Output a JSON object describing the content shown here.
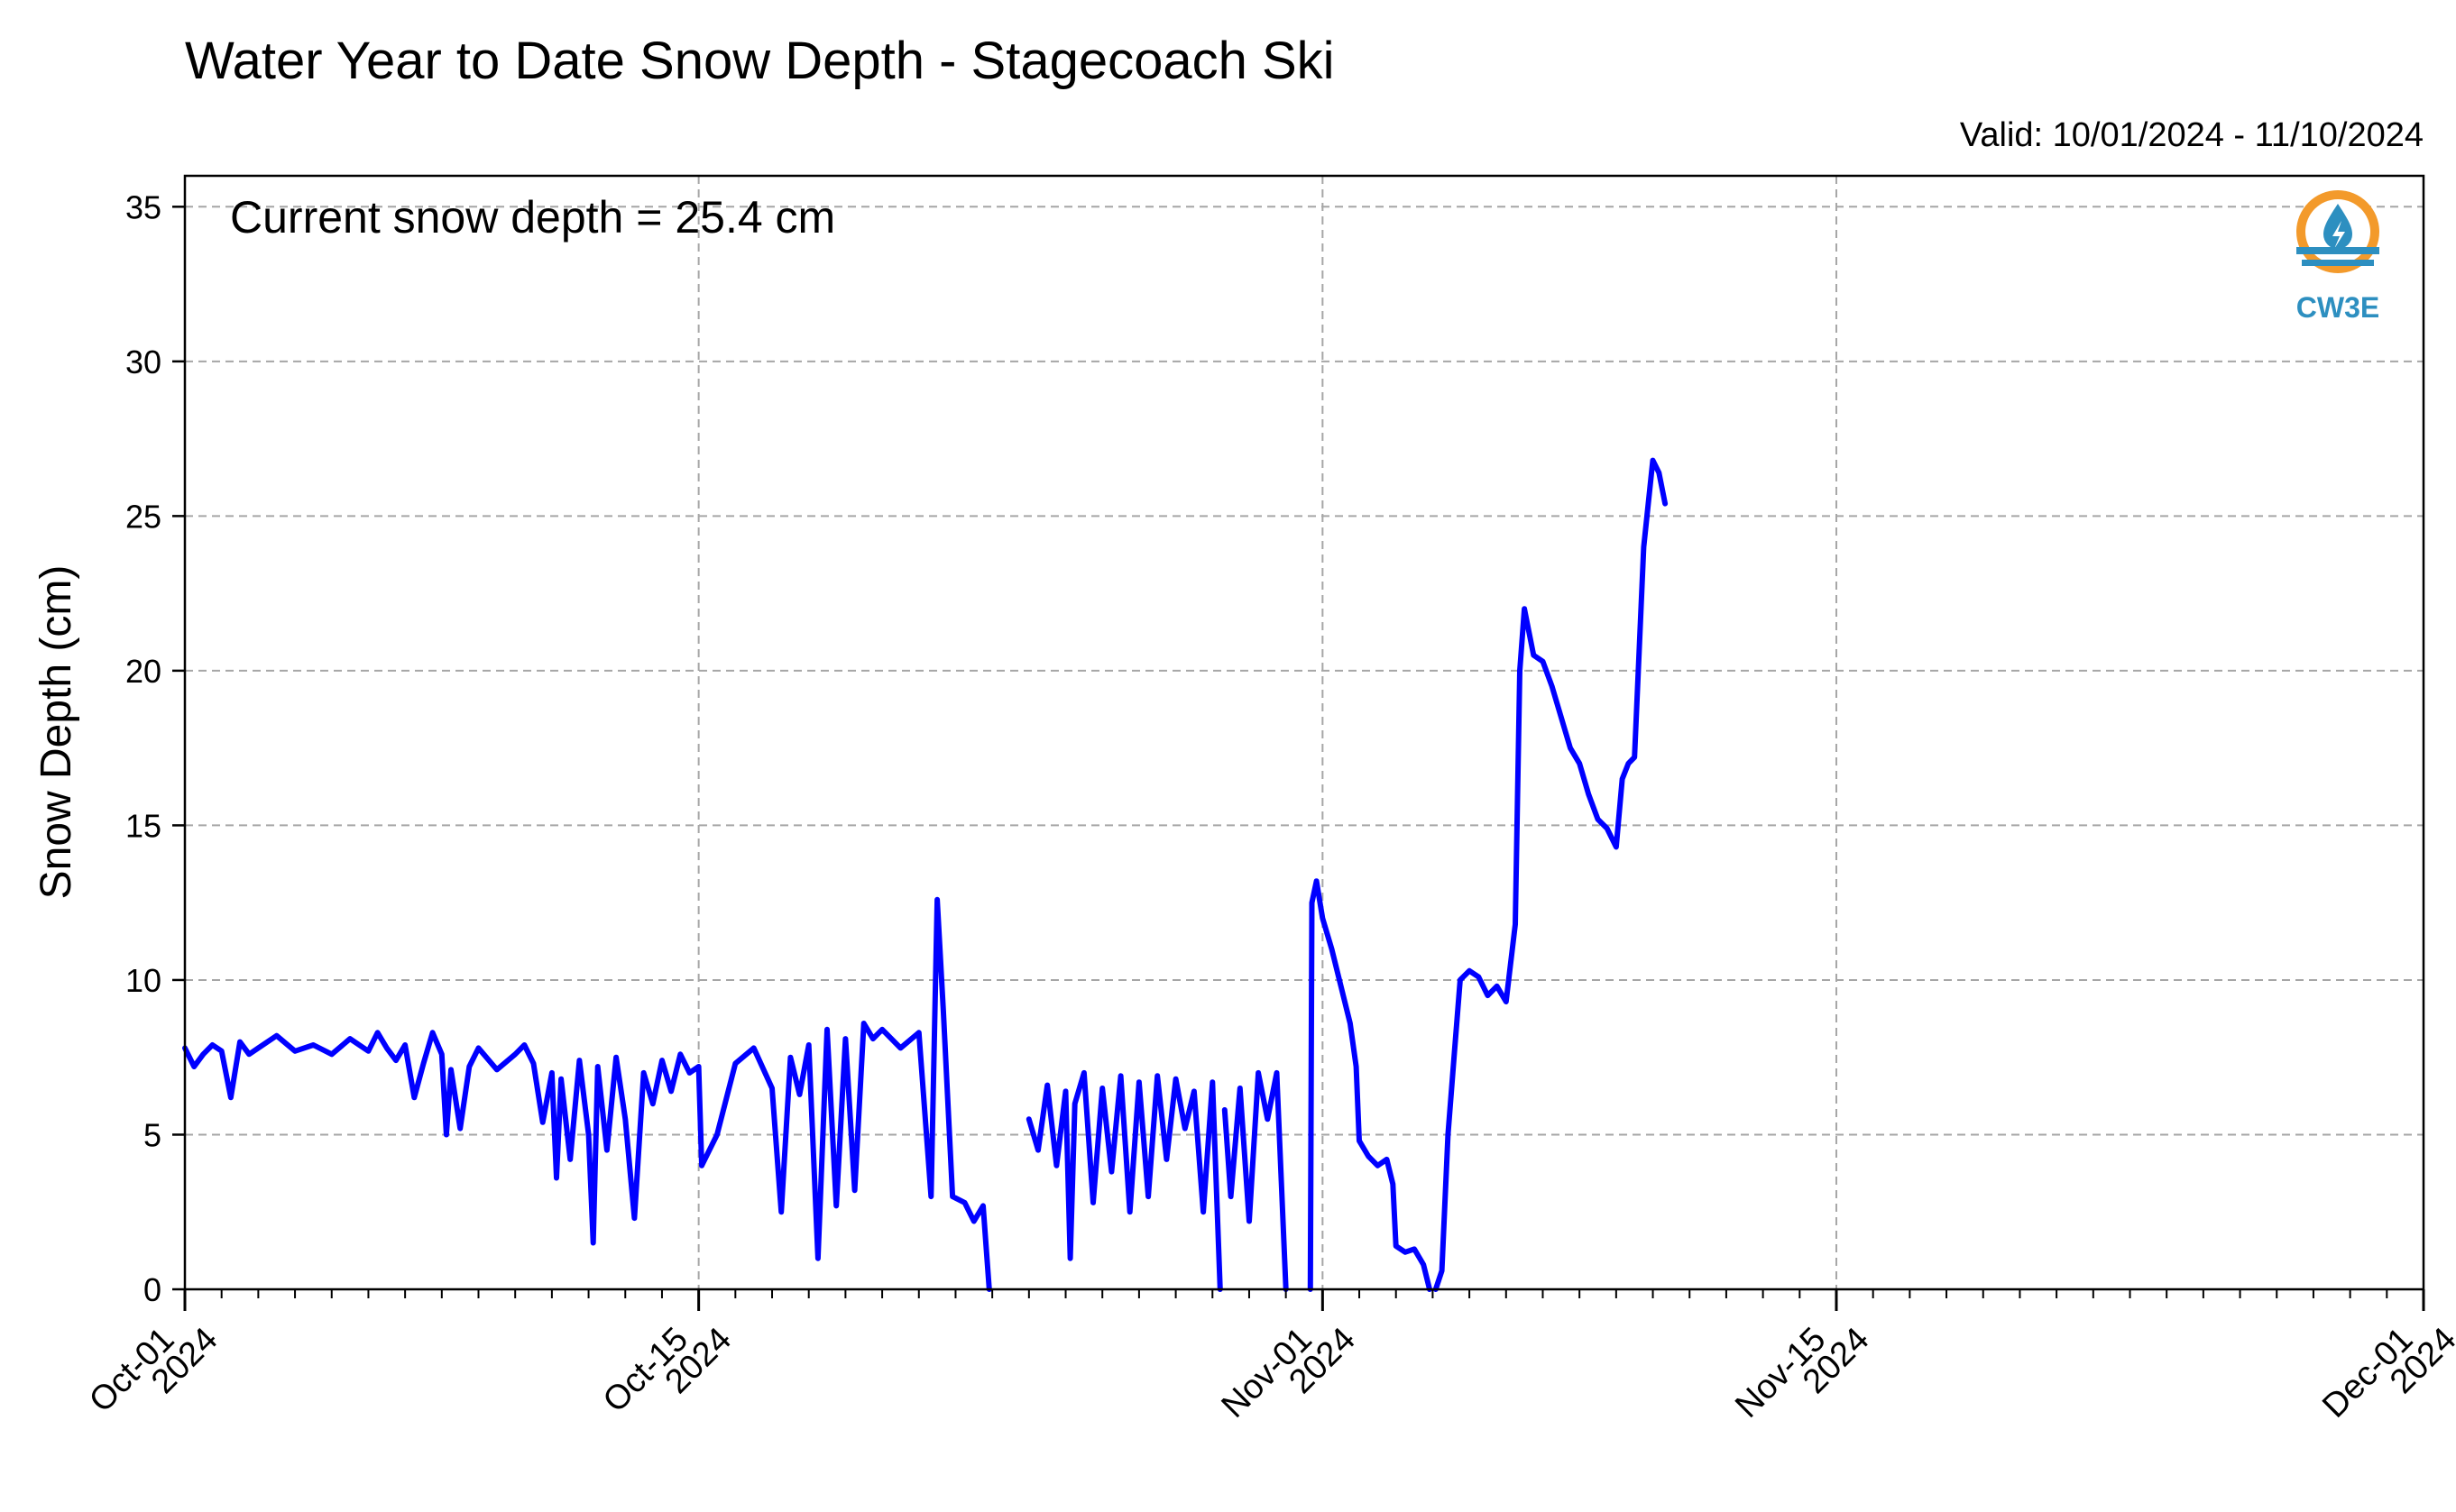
{
  "chart_data": {
    "type": "line",
    "title": "Water Year to Date Snow Depth - Stagecoach Ski",
    "valid_range": "Valid: 10/01/2024 - 11/10/2024",
    "ylabel": "Snow Depth (cm)",
    "xlabel": "",
    "ylim": [
      0,
      36
    ],
    "yticks": [
      0,
      5,
      10,
      15,
      20,
      25,
      30,
      35
    ],
    "xlim": [
      "2024-10-01",
      "2024-12-01"
    ],
    "xticks": [
      {
        "date": "2024-10-01",
        "label_line1": "Oct-01",
        "label_line2": "2024"
      },
      {
        "date": "2024-10-15",
        "label_line1": "Oct-15",
        "label_line2": "2024"
      },
      {
        "date": "2024-11-01",
        "label_line1": "Nov-01",
        "label_line2": "2024"
      },
      {
        "date": "2024-11-15",
        "label_line1": "Nov-15",
        "label_line2": "2024"
      },
      {
        "date": "2024-12-01",
        "label_line1": "Dec-01",
        "label_line2": "2024"
      }
    ],
    "grid": true,
    "annotation": "Current snow depth = 25.4 cm",
    "logo_text": "CW3E",
    "line_color": "#0000ff",
    "series": [
      {
        "segments": [
          [
            [
              "2024-10-01T00:00",
              7.8
            ],
            [
              "2024-10-01T06:00",
              7.2
            ],
            [
              "2024-10-01T12:00",
              7.6
            ],
            [
              "2024-10-01T18:00",
              7.9
            ],
            [
              "2024-10-02T00:00",
              7.7
            ],
            [
              "2024-10-02T06:00",
              6.2
            ],
            [
              "2024-10-02T12:00",
              8.0
            ],
            [
              "2024-10-02T18:00",
              7.6
            ],
            [
              "2024-10-03T00:00",
              7.8
            ],
            [
              "2024-10-03T12:00",
              8.2
            ],
            [
              "2024-10-04T00:00",
              7.7
            ],
            [
              "2024-10-04T12:00",
              7.9
            ],
            [
              "2024-10-05T00:00",
              7.6
            ],
            [
              "2024-10-05T12:00",
              8.1
            ],
            [
              "2024-10-06T00:00",
              7.7
            ],
            [
              "2024-10-06T06:00",
              8.3
            ],
            [
              "2024-10-06T12:00",
              7.8
            ],
            [
              "2024-10-06T18:00",
              7.4
            ],
            [
              "2024-10-07T00:00",
              7.9
            ],
            [
              "2024-10-07T06:00",
              6.2
            ],
            [
              "2024-10-07T12:00",
              7.3
            ],
            [
              "2024-10-07T18:00",
              8.3
            ],
            [
              "2024-10-08T00:00",
              7.6
            ],
            [
              "2024-10-08T03:00",
              5.0
            ],
            [
              "2024-10-08T06:00",
              7.1
            ],
            [
              "2024-10-08T12:00",
              5.2
            ],
            [
              "2024-10-08T18:00",
              7.2
            ],
            [
              "2024-10-09T00:00",
              7.8
            ],
            [
              "2024-10-09T12:00",
              7.1
            ],
            [
              "2024-10-10T00:00",
              7.6
            ],
            [
              "2024-10-10T06:00",
              7.9
            ],
            [
              "2024-10-10T12:00",
              7.3
            ],
            [
              "2024-10-10T18:00",
              5.4
            ],
            [
              "2024-10-11T00:00",
              7.0
            ],
            [
              "2024-10-11T03:00",
              3.6
            ],
            [
              "2024-10-11T06:00",
              6.8
            ],
            [
              "2024-10-11T12:00",
              4.2
            ],
            [
              "2024-10-11T18:00",
              7.4
            ],
            [
              "2024-10-12T00:00",
              5.0
            ],
            [
              "2024-10-12T03:00",
              1.5
            ],
            [
              "2024-10-12T06:00",
              7.2
            ],
            [
              "2024-10-12T12:00",
              4.5
            ],
            [
              "2024-10-12T18:00",
              7.5
            ],
            [
              "2024-10-13T00:00",
              5.5
            ],
            [
              "2024-10-13T06:00",
              2.3
            ],
            [
              "2024-10-13T12:00",
              7.0
            ],
            [
              "2024-10-13T18:00",
              6.0
            ],
            [
              "2024-10-14T00:00",
              7.4
            ],
            [
              "2024-10-14T06:00",
              6.4
            ],
            [
              "2024-10-14T12:00",
              7.6
            ],
            [
              "2024-10-14T18:00",
              7.0
            ],
            [
              "2024-10-15T00:00",
              7.2
            ],
            [
              "2024-10-15T02:00",
              4.0
            ],
            [
              "2024-10-15T12:00",
              5.0
            ],
            [
              "2024-10-16T00:00",
              7.3
            ],
            [
              "2024-10-16T12:00",
              7.8
            ],
            [
              "2024-10-17T00:00",
              6.5
            ],
            [
              "2024-10-17T06:00",
              2.5
            ],
            [
              "2024-10-17T12:00",
              7.5
            ],
            [
              "2024-10-17T18:00",
              6.3
            ],
            [
              "2024-10-18T00:00",
              7.9
            ],
            [
              "2024-10-18T06:00",
              1.0
            ],
            [
              "2024-10-18T12:00",
              8.4
            ],
            [
              "2024-10-18T18:00",
              2.7
            ],
            [
              "2024-10-19T00:00",
              8.1
            ],
            [
              "2024-10-19T06:00",
              3.2
            ],
            [
              "2024-10-19T12:00",
              8.6
            ],
            [
              "2024-10-19T18:00",
              8.1
            ],
            [
              "2024-10-20T00:00",
              8.4
            ],
            [
              "2024-10-20T12:00",
              7.8
            ],
            [
              "2024-10-21T00:00",
              8.3
            ],
            [
              "2024-10-21T08:00",
              3.0
            ],
            [
              "2024-10-21T12:00",
              12.6
            ],
            [
              "2024-10-21T16:00",
              9.0
            ],
            [
              "2024-10-21T22:00",
              3.0
            ],
            [
              "2024-10-22T06:00",
              2.8
            ],
            [
              "2024-10-22T12:00",
              2.2
            ],
            [
              "2024-10-22T18:00",
              2.7
            ],
            [
              "2024-10-22T22:00",
              0.0
            ]
          ],
          [
            [
              "2024-10-24T00:00",
              5.5
            ],
            [
              "2024-10-24T06:00",
              4.5
            ],
            [
              "2024-10-24T12:00",
              6.6
            ],
            [
              "2024-10-24T18:00",
              4.0
            ],
            [
              "2024-10-25T00:00",
              6.4
            ],
            [
              "2024-10-25T03:00",
              1.0
            ],
            [
              "2024-10-25T06:00",
              6.0
            ],
            [
              "2024-10-25T12:00",
              7.0
            ],
            [
              "2024-10-25T18:00",
              2.8
            ],
            [
              "2024-10-26T00:00",
              6.5
            ],
            [
              "2024-10-26T06:00",
              3.8
            ],
            [
              "2024-10-26T12:00",
              6.9
            ],
            [
              "2024-10-26T18:00",
              2.5
            ],
            [
              "2024-10-27T00:00",
              6.7
            ],
            [
              "2024-10-27T06:00",
              3.0
            ],
            [
              "2024-10-27T12:00",
              6.9
            ],
            [
              "2024-10-27T18:00",
              4.2
            ],
            [
              "2024-10-28T00:00",
              6.8
            ],
            [
              "2024-10-28T06:00",
              5.2
            ],
            [
              "2024-10-28T12:00",
              6.4
            ],
            [
              "2024-10-28T18:00",
              2.5
            ],
            [
              "2024-10-29T00:00",
              6.7
            ],
            [
              "2024-10-29T05:00",
              0.0
            ]
          ],
          [
            [
              "2024-10-29T08:00",
              5.8
            ],
            [
              "2024-10-29T12:00",
              3.0
            ],
            [
              "2024-10-29T18:00",
              6.5
            ],
            [
              "2024-10-30T00:00",
              2.2
            ],
            [
              "2024-10-30T06:00",
              7.0
            ],
            [
              "2024-10-30T12:00",
              5.5
            ],
            [
              "2024-10-30T18:00",
              7.0
            ],
            [
              "2024-10-30T21:00",
              3.5
            ],
            [
              "2024-10-31T00:00",
              0.0
            ]
          ],
          [
            [
              "2024-10-31T16:00",
              0.0
            ],
            [
              "2024-10-31T17:00",
              12.5
            ],
            [
              "2024-10-31T20:00",
              13.2
            ],
            [
              "2024-11-01T00:00",
              12.0
            ],
            [
              "2024-11-01T06:00",
              11.0
            ],
            [
              "2024-11-01T12:00",
              9.8
            ],
            [
              "2024-11-01T18:00",
              8.6
            ],
            [
              "2024-11-01T22:00",
              7.2
            ],
            [
              "2024-11-02T00:00",
              4.8
            ],
            [
              "2024-11-02T06:00",
              4.3
            ],
            [
              "2024-11-02T12:00",
              4.0
            ],
            [
              "2024-11-02T18:00",
              4.2
            ],
            [
              "2024-11-02T22:00",
              3.4
            ],
            [
              "2024-11-03T00:00",
              1.4
            ],
            [
              "2024-11-03T06:00",
              1.2
            ],
            [
              "2024-11-03T12:00",
              1.3
            ],
            [
              "2024-11-03T18:00",
              0.8
            ],
            [
              "2024-11-03T22:00",
              0.0
            ]
          ],
          [
            [
              "2024-11-04T02:00",
              0.0
            ],
            [
              "2024-11-04T06:00",
              0.6
            ],
            [
              "2024-11-04T10:00",
              5.0
            ],
            [
              "2024-11-04T14:00",
              7.5
            ],
            [
              "2024-11-04T18:00",
              10.0
            ],
            [
              "2024-11-05T00:00",
              10.3
            ],
            [
              "2024-11-05T06:00",
              10.1
            ],
            [
              "2024-11-05T12:00",
              9.5
            ],
            [
              "2024-11-05T18:00",
              9.8
            ],
            [
              "2024-11-06T00:00",
              9.3
            ],
            [
              "2024-11-06T06:00",
              11.8
            ],
            [
              "2024-11-06T09:00",
              20.0
            ],
            [
              "2024-11-06T12:00",
              22.0
            ],
            [
              "2024-11-06T18:00",
              20.5
            ],
            [
              "2024-11-07T00:00",
              20.3
            ],
            [
              "2024-11-07T06:00",
              19.5
            ],
            [
              "2024-11-07T12:00",
              18.5
            ],
            [
              "2024-11-07T18:00",
              17.5
            ],
            [
              "2024-11-08T00:00",
              17.0
            ],
            [
              "2024-11-08T06:00",
              16.0
            ],
            [
              "2024-11-08T12:00",
              15.2
            ],
            [
              "2024-11-08T18:00",
              14.9
            ],
            [
              "2024-11-09T00:00",
              14.3
            ],
            [
              "2024-11-09T04:00",
              16.5
            ],
            [
              "2024-11-09T08:00",
              17.0
            ],
            [
              "2024-11-09T12:00",
              17.2
            ],
            [
              "2024-11-09T18:00",
              24.0
            ],
            [
              "2024-11-10T00:00",
              26.8
            ],
            [
              "2024-11-10T04:00",
              26.4
            ],
            [
              "2024-11-10T08:00",
              25.4
            ]
          ]
        ]
      }
    ]
  }
}
